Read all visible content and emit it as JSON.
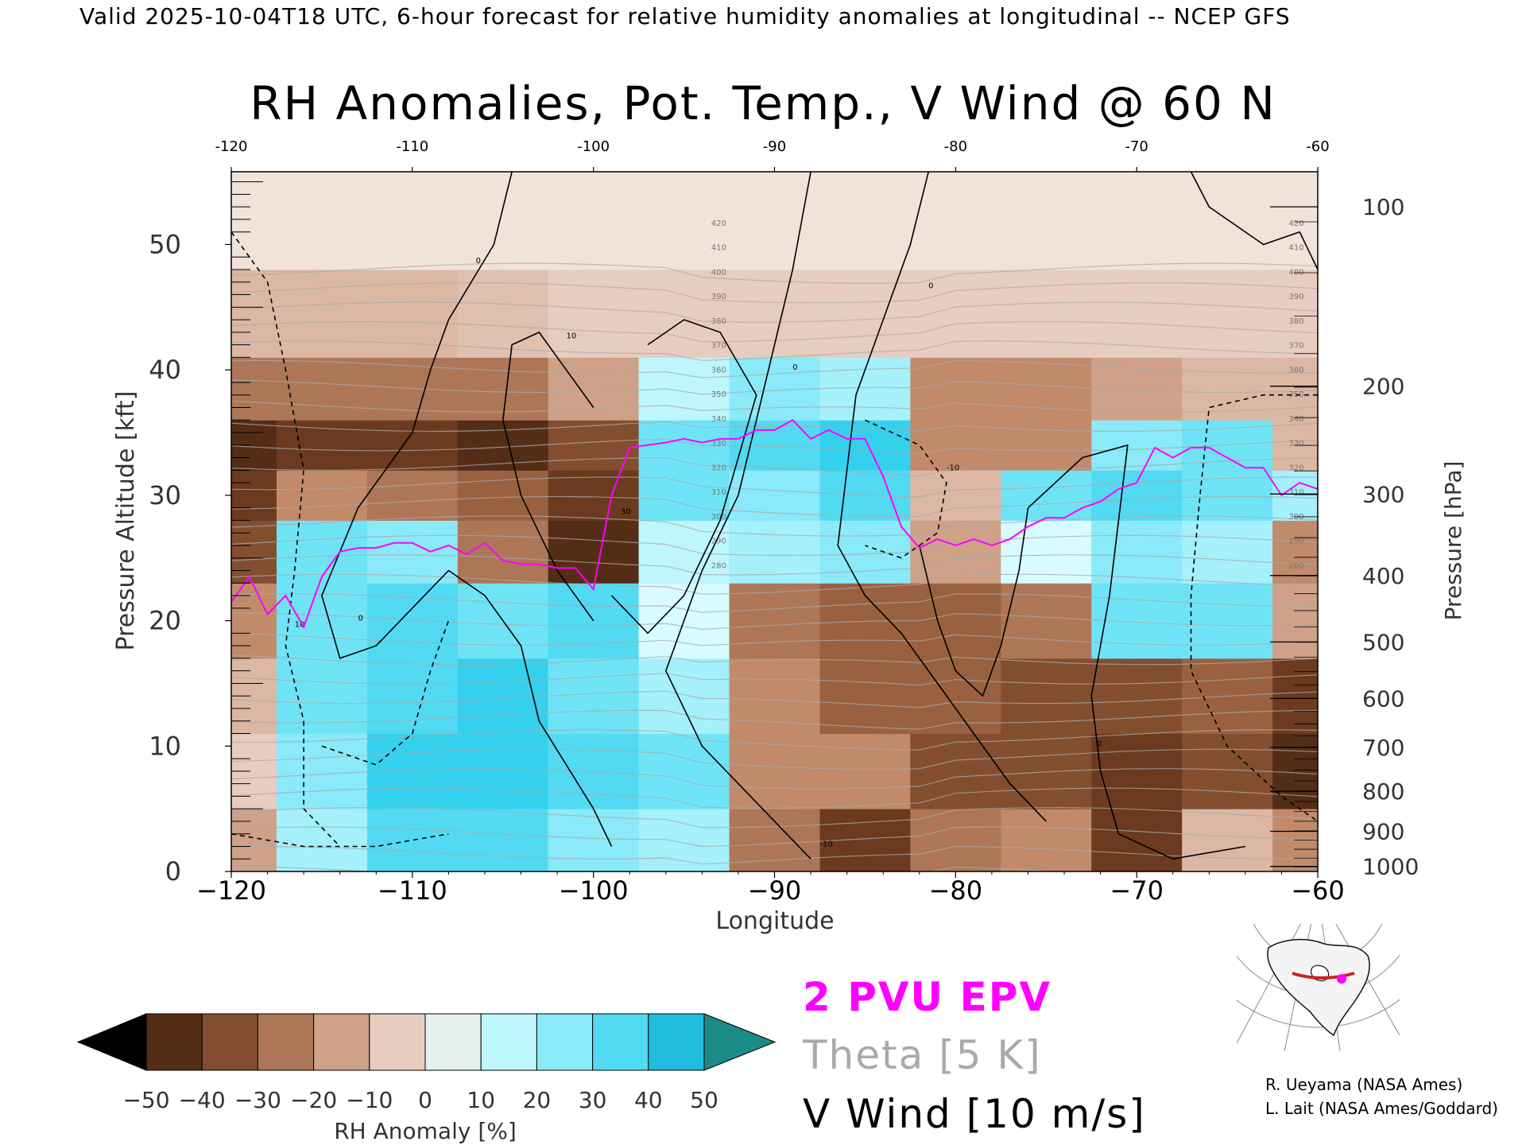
{
  "header": {
    "valid_text": "Valid 2025-10-04T18 UTC, 6-hour forecast for relative humidity anomalies at longitudinal -- NCEP GFS",
    "title": "RH Anomalies, Pot. Temp., V Wind @ 60 N"
  },
  "chart_data": {
    "type": "heatmap",
    "title": "RH Anomalies, Pot. Temp., V Wind @ 60 N",
    "xlabel": "Longitude",
    "ylabel_left": "Pressure Altitude [kft]",
    "ylabel_right": "Pressure [hPa]",
    "xlim": [
      -120,
      -60
    ],
    "ylim": [
      0,
      55.8
    ],
    "x_ticks": [
      -120,
      -110,
      -100,
      -90,
      -80,
      -70,
      -60
    ],
    "x_tick_labels": [
      "−120",
      "−110",
      "−100",
      "−90",
      "−80",
      "−70",
      "−60"
    ],
    "top_tick_labels": [
      "-120",
      "-110",
      "-100",
      "-90",
      "-80",
      "-70",
      "-60"
    ],
    "y_ticks": [
      0,
      10,
      20,
      30,
      40,
      50
    ],
    "pressure_ticks": [
      {
        "hpa": 100,
        "kft": 53.0
      },
      {
        "hpa": 200,
        "kft": 38.7
      },
      {
        "hpa": 300,
        "kft": 30.1
      },
      {
        "hpa": 400,
        "kft": 23.6
      },
      {
        "hpa": 500,
        "kft": 18.3
      },
      {
        "hpa": 600,
        "kft": 13.8
      },
      {
        "hpa": 700,
        "kft": 9.9
      },
      {
        "hpa": 800,
        "kft": 6.4
      },
      {
        "hpa": 900,
        "kft": 3.2
      },
      {
        "hpa": 1000,
        "kft": 0.4
      }
    ],
    "colorbar": {
      "label": "RH Anomaly [%]",
      "min": -50,
      "max": 50,
      "tick_labels": [
        "−50",
        "−40",
        "−30",
        "−20",
        "−10",
        "0",
        "10",
        "20",
        "30",
        "40",
        "50"
      ],
      "colors": [
        "#3c1f0e",
        "#6b3a1f",
        "#9a6140",
        "#c08a6b",
        "#dcb7a4",
        "#f1e2da",
        "#d8fbff",
        "#a4f0fb",
        "#6fe3f6",
        "#34d1ee",
        "#0aa6cd"
      ],
      "under_color": "#000000",
      "over_color": "#1a8b86"
    },
    "rh_anomaly_grid": {
      "lons": [
        -120,
        -115,
        -110,
        -105,
        -100,
        -95,
        -90,
        -85,
        -80,
        -75,
        -70,
        -65,
        -60
      ],
      "kft": [
        2,
        8,
        14,
        20,
        26,
        30,
        34,
        38,
        44,
        52
      ],
      "values": [
        [
          -15,
          20,
          35,
          35,
          25,
          20,
          -25,
          -40,
          -25,
          -20,
          -40,
          -10,
          -20
        ],
        [
          -5,
          25,
          40,
          40,
          35,
          30,
          -20,
          -20,
          -35,
          -35,
          -40,
          -35,
          -45
        ],
        [
          -10,
          30,
          35,
          40,
          30,
          20,
          -20,
          -30,
          -30,
          -35,
          -35,
          -30,
          -40
        ],
        [
          -20,
          30,
          35,
          30,
          35,
          10,
          -25,
          -30,
          -30,
          -25,
          30,
          30,
          -15
        ],
        [
          -35,
          30,
          25,
          -25,
          -45,
          15,
          20,
          25,
          -15,
          10,
          25,
          20,
          -20
        ],
        [
          -40,
          -20,
          -25,
          -30,
          -40,
          30,
          25,
          35,
          -10,
          30,
          35,
          30,
          20
        ],
        [
          -45,
          -40,
          -40,
          -45,
          -35,
          30,
          35,
          40,
          -20,
          -20,
          25,
          30,
          -10
        ],
        [
          -25,
          -25,
          -25,
          -25,
          -15,
          15,
          25,
          20,
          -20,
          -20,
          -15,
          -10,
          -10
        ],
        [
          -10,
          -10,
          -10,
          -8,
          -5,
          -5,
          -5,
          -5,
          -5,
          -5,
          -5,
          -5,
          -5
        ],
        [
          0,
          0,
          0,
          0,
          0,
          0,
          0,
          0,
          0,
          0,
          0,
          0,
          0
        ]
      ]
    },
    "theta_labels": [
      "420",
      "410",
      "400",
      "390",
      "380",
      "370",
      "360",
      "350",
      "340",
      "330",
      "320",
      "310",
      "300",
      "290",
      "280"
    ],
    "epv_2pvu": {
      "lons": [
        -120,
        -119,
        -118,
        -117,
        -116,
        -115,
        -114,
        -113,
        -112,
        -111,
        -110,
        -109,
        -108,
        -107,
        -106,
        -105,
        -104,
        -103,
        -102,
        -101,
        -100,
        -99,
        -98,
        -97,
        -96,
        -95,
        -94,
        -93,
        -92,
        -91,
        -90,
        -89,
        -88,
        -87,
        -86,
        -85,
        -84,
        -83,
        -82,
        -81,
        -80,
        -79,
        -78,
        -77,
        -76,
        -75,
        -74,
        -73,
        -72,
        -71,
        -70,
        -69,
        -68,
        -67,
        -66,
        -65,
        -64,
        -63,
        -62,
        -61,
        -60
      ],
      "kft": [
        21.5,
        23.5,
        20.5,
        22,
        19.5,
        23.5,
        25.5,
        25.8,
        25.8,
        26.2,
        26.2,
        25.5,
        26,
        25.3,
        26.2,
        24.8,
        24.5,
        24.5,
        24.2,
        24.2,
        22.5,
        30,
        33.8,
        34,
        34.2,
        34.5,
        34.2,
        34.5,
        34.5,
        35.2,
        35.2,
        36,
        34.5,
        35.2,
        34.5,
        34.5,
        31.5,
        27.5,
        25.8,
        26.5,
        26,
        26.5,
        26,
        26.5,
        27.5,
        28.2,
        28.2,
        29,
        29.5,
        30.5,
        31,
        33.8,
        33,
        33.8,
        33.8,
        33,
        32.2,
        32.2,
        30,
        31,
        30.5
      ]
    },
    "v_wind_contours": {
      "interval": "10 m/s",
      "level_labels": [
        "0",
        "10",
        "-10",
        "30",
        "-30"
      ]
    }
  },
  "legend": {
    "epv_label": "2 PVU EPV",
    "theta_label": "Theta [5 K]",
    "wind_label": "V Wind [10 m/s]",
    "colors": {
      "epv": "#ff00ff",
      "theta": "#aaaaaa",
      "wind": "#000000"
    }
  },
  "credits": {
    "line1": "R. Ueyama (NASA Ames)",
    "line2": "L. Lait (NASA Ames/Goddard)"
  },
  "locator_map": {
    "cross_section_color": "#cc2222",
    "marker_color": "#ff00ff"
  }
}
